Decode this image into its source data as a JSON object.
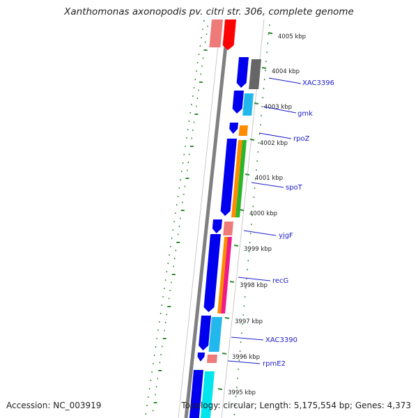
{
  "title": "Xanthomonas axonopodis pv. citri str. 306, complete genome",
  "accession": "Accession: NC_003919",
  "topology": "Topology: circular; Length: 5,175,554 bp; Genes: 4,373",
  "colors": {
    "backbone": "#808080",
    "tick": "#2e8b2e",
    "gene_label": "#1a1acd",
    "kbp_label": "#222222",
    "cds_forward": "#0000ee",
    "cds_dark_gray": "#666666",
    "cds_cyan": "#22b8ee",
    "cds_orange": "#ff8c00",
    "cds_green": "#2bb52b",
    "cds_pink": "#ee7a7a",
    "cds_magenta": "#ee1a8c",
    "cds_aqua": "#00e5ee",
    "cds_red": "#ff0000"
  },
  "kbp_labels": [
    "4005 kbp",
    "4004 kbp",
    "4003 kbp",
    "4002 kbp",
    "4001 kbp",
    "4000 kbp",
    "3999 kbp",
    "3998 kbp",
    "3997 kbp",
    "3996 kbp",
    "3995 kbp"
  ],
  "gene_labels": [
    "XAC3396",
    "gmk",
    "rpoZ",
    "spoT",
    "yjgF",
    "recG",
    "XAC3390",
    "rpmE2"
  ]
}
